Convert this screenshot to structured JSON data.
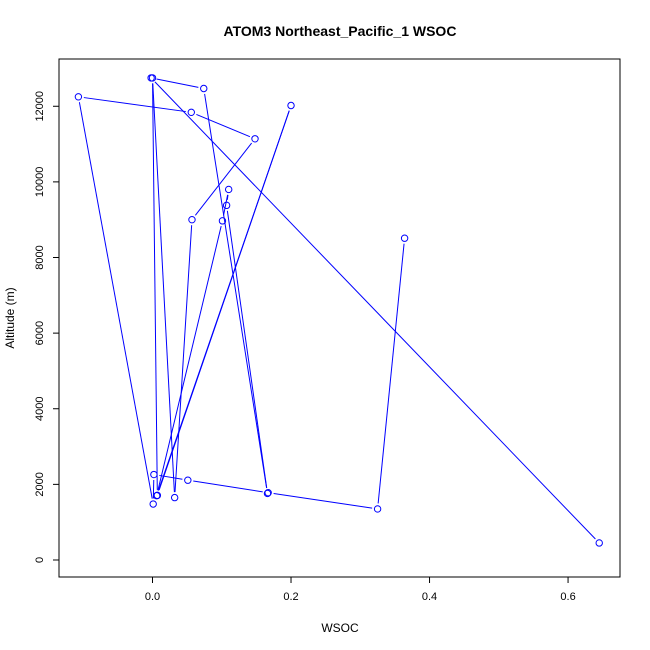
{
  "chart_data": {
    "type": "line",
    "title": "ATOM3 Northeast_Pacific_1 WSOC",
    "xlabel": "WSOC",
    "ylabel": "Altitude (m)",
    "xlim": [
      -0.135,
      0.675
    ],
    "ylim": [
      -450,
      13250
    ],
    "xticks": [
      0.0,
      0.2,
      0.4,
      0.6
    ],
    "xtick_labels": [
      "0.0",
      "0.2",
      "0.4",
      "0.6"
    ],
    "yticks": [
      0,
      2000,
      4000,
      6000,
      8000,
      10000,
      12000
    ],
    "ytick_labels": [
      "0",
      "2000",
      "4000",
      "6000",
      "8000",
      "10000",
      "12000"
    ],
    "grid": false,
    "series": [
      {
        "color": "#0000ff",
        "marker": "open-circle",
        "x": [
          0.364,
          0.325,
          0.167,
          0.051,
          0.002,
          0.001,
          -0.107,
          0.056,
          0.148,
          0.057,
          0.032,
          0.0,
          0.007,
          0.2,
          0.006,
          0.101,
          0.11,
          0.107,
          0.166,
          0.074,
          -0.002,
          0.645
        ],
        "y": [
          8510,
          1350,
          1780,
          2110,
          2260,
          1480,
          12250,
          11840,
          11140,
          9000,
          1650,
          12750,
          1710,
          12020,
          1700,
          8970,
          9800,
          9380,
          1760,
          12470,
          12750,
          450
        ]
      }
    ]
  }
}
